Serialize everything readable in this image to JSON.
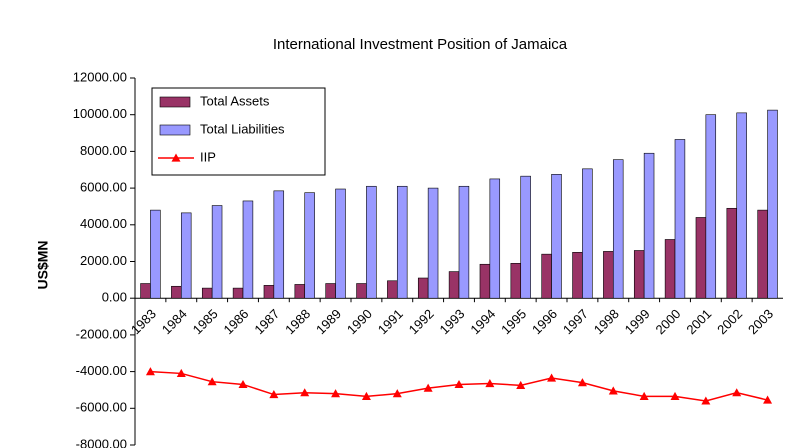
{
  "chart_data": {
    "type": "bar",
    "title": "International Investment Position of Jamaica",
    "y_label": "US$MN",
    "categories": [
      "1983",
      "1984",
      "1985",
      "1986",
      "1987",
      "1988",
      "1989",
      "1990",
      "1991",
      "1992",
      "1993",
      "1994",
      "1995",
      "1996",
      "1997",
      "1998",
      "1999",
      "2000",
      "2001",
      "2002",
      "2003"
    ],
    "series": [
      {
        "name": "Total Assets",
        "type": "bar",
        "color": "#993366",
        "values": [
          800,
          650,
          550,
          550,
          700,
          750,
          800,
          800,
          950,
          1100,
          1450,
          1850,
          1900,
          2400,
          2500,
          2550,
          2600,
          3200,
          4400,
          4900,
          4800
        ]
      },
      {
        "name": "Total Liabilities",
        "type": "bar",
        "color": "#9999ff",
        "values": [
          4800,
          4650,
          5050,
          5300,
          5850,
          5750,
          5950,
          6100,
          6100,
          6000,
          6100,
          6500,
          6650,
          6750,
          7050,
          7550,
          7900,
          8650,
          10000,
          10100,
          10250
        ]
      },
      {
        "name": "IIP",
        "type": "line",
        "color": "#ff0000",
        "values": [
          -4000,
          -4100,
          -4550,
          -4700,
          -5250,
          -5150,
          -5200,
          -5350,
          -5200,
          -4900,
          -4700,
          -4650,
          -4750,
          -4350,
          -4600,
          -5050,
          -5350,
          -5350,
          -5600,
          -5150,
          -5550
        ]
      }
    ],
    "ylim": [
      -8000,
      12000
    ],
    "yticks": [
      {
        "value": -8000,
        "label": "-8000.00"
      },
      {
        "value": -6000,
        "label": "-6000.00"
      },
      {
        "value": -4000,
        "label": "-4000.00"
      },
      {
        "value": -2000,
        "label": "-2000.00"
      },
      {
        "value": 0,
        "label": "0.00"
      },
      {
        "value": 2000,
        "label": "2000.00"
      },
      {
        "value": 4000,
        "label": "4000.00"
      },
      {
        "value": 6000,
        "label": "6000.00"
      },
      {
        "value": 8000,
        "label": "8000.00"
      },
      {
        "value": 10000,
        "label": "10000.00"
      },
      {
        "value": 12000,
        "label": "12000.00"
      }
    ],
    "legend": "top-left"
  }
}
